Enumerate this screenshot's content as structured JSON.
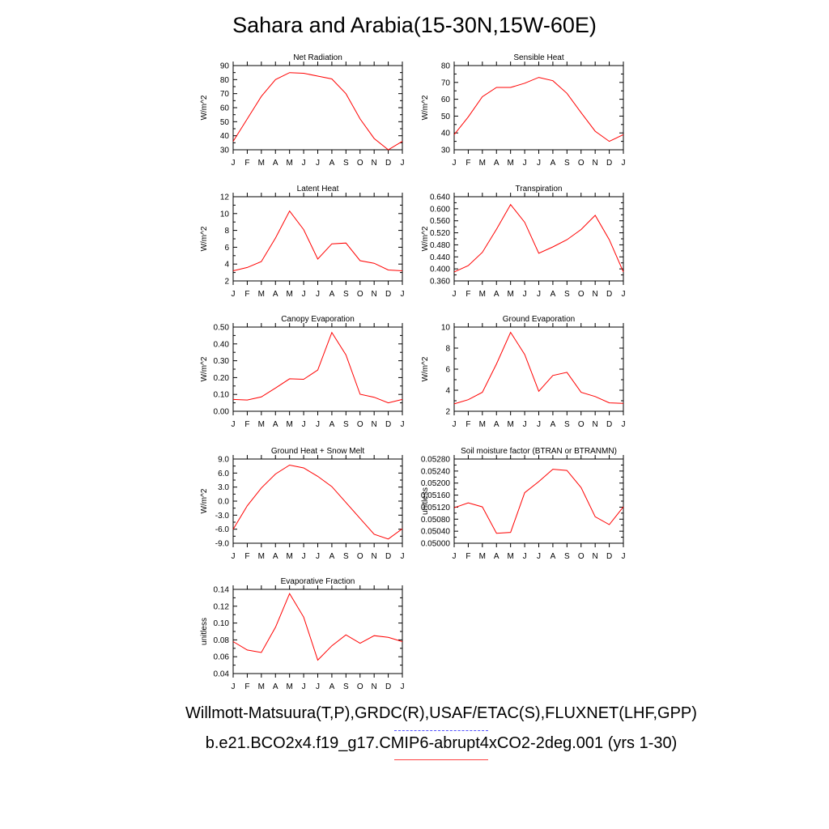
{
  "figure_title": "Sahara and Arabia(15-30N,15W-60E)",
  "month_labels": [
    "J",
    "F",
    "M",
    "A",
    "M",
    "J",
    "J",
    "A",
    "S",
    "O",
    "N",
    "D",
    "J"
  ],
  "colors": {
    "model_line": "#ff0000",
    "obs_line": "#5050ff",
    "axis": "#000000"
  },
  "legend": {
    "observations": "Willmott-Matsuura(T,P),GRDC(R),USAF/ETAC(S),FLUXNET(LHF,GPP)",
    "model": "b.e21.BCO2x4.f19_g17.CMIP6-abrupt4xCO2-2deg.001 (yrs 1-30)"
  },
  "chart_data": [
    {
      "type": "line",
      "title": "Net Radiation",
      "ylabel": "W/m^2",
      "ylim": [
        30,
        90
      ],
      "yticks": [
        "30",
        "40",
        "50",
        "60",
        "70",
        "80",
        "90"
      ],
      "x": [
        "J",
        "F",
        "M",
        "A",
        "M",
        "J",
        "J",
        "A",
        "S",
        "O",
        "N",
        "D",
        "J"
      ],
      "series": [
        {
          "values": [
            36,
            52,
            68,
            80,
            85,
            84.5,
            82.5,
            80.5,
            70,
            52,
            38,
            30,
            36
          ]
        }
      ]
    },
    {
      "type": "line",
      "title": "Sensible Heat",
      "ylabel": "W/m^2",
      "ylim": [
        30,
        80
      ],
      "yticks": [
        "30",
        "40",
        "50",
        "60",
        "70",
        "80"
      ],
      "x": [
        "J",
        "F",
        "M",
        "A",
        "M",
        "J",
        "J",
        "A",
        "S",
        "O",
        "N",
        "D",
        "J"
      ],
      "series": [
        {
          "values": [
            39,
            49.5,
            61.5,
            67,
            67,
            69.5,
            73,
            71,
            63.5,
            52,
            41,
            35,
            39
          ]
        }
      ]
    },
    {
      "type": "line",
      "title": "Latent Heat",
      "ylabel": "W/m^2",
      "ylim": [
        2,
        12
      ],
      "yticks": [
        "2",
        "4",
        "6",
        "8",
        "10",
        "12"
      ],
      "x": [
        "J",
        "F",
        "M",
        "A",
        "M",
        "J",
        "J",
        "A",
        "S",
        "O",
        "N",
        "D",
        "J"
      ],
      "series": [
        {
          "values": [
            3.2,
            3.6,
            4.3,
            7.1,
            10.3,
            8.1,
            4.6,
            6.4,
            6.5,
            4.4,
            4.1,
            3.3,
            3.2
          ]
        }
      ]
    },
    {
      "type": "line",
      "title": "Transpiration",
      "ylabel": "W/m^2",
      "ylim": [
        0.36,
        0.64
      ],
      "yticks": [
        "0.360",
        "0.400",
        "0.440",
        "0.480",
        "0.520",
        "0.560",
        "0.600",
        "0.640"
      ],
      "x": [
        "J",
        "F",
        "M",
        "A",
        "M",
        "J",
        "J",
        "A",
        "S",
        "O",
        "N",
        "D",
        "J"
      ],
      "series": [
        {
          "values": [
            0.39,
            0.411,
            0.455,
            0.532,
            0.614,
            0.555,
            0.452,
            0.473,
            0.497,
            0.531,
            0.578,
            0.497,
            0.39
          ]
        }
      ]
    },
    {
      "type": "line",
      "title": "Canopy Evaporation",
      "ylabel": "W/m^2",
      "ylim": [
        0,
        0.5
      ],
      "yticks": [
        "0.00",
        "0.10",
        "0.20",
        "0.30",
        "0.40",
        "0.50"
      ],
      "x": [
        "J",
        "F",
        "M",
        "A",
        "M",
        "J",
        "J",
        "A",
        "S",
        "O",
        "N",
        "D",
        "J"
      ],
      "series": [
        {
          "values": [
            0.07,
            0.067,
            0.085,
            0.138,
            0.193,
            0.19,
            0.245,
            0.468,
            0.335,
            0.101,
            0.083,
            0.05,
            0.07
          ]
        }
      ]
    },
    {
      "type": "line",
      "title": "Ground Evaporation",
      "ylabel": "W/m^2",
      "ylim": [
        2,
        10
      ],
      "yticks": [
        "2",
        "4",
        "6",
        "8",
        "10"
      ],
      "x": [
        "J",
        "F",
        "M",
        "A",
        "M",
        "J",
        "J",
        "A",
        "S",
        "O",
        "N",
        "D",
        "J"
      ],
      "series": [
        {
          "values": [
            2.7,
            3.1,
            3.8,
            6.5,
            9.5,
            7.4,
            3.9,
            5.4,
            5.7,
            3.8,
            3.4,
            2.8,
            2.75
          ]
        }
      ]
    },
    {
      "type": "line",
      "title": "Ground Heat + Snow Melt",
      "ylabel": "W/m^2",
      "ylim": [
        -9,
        9
      ],
      "yticks": [
        "-9.0",
        "-6.0",
        "-3.0",
        "0.0",
        "3.0",
        "6.0",
        "9.0"
      ],
      "x": [
        "J",
        "F",
        "M",
        "A",
        "M",
        "J",
        "J",
        "A",
        "S",
        "O",
        "N",
        "D",
        "J"
      ],
      "series": [
        {
          "values": [
            -6,
            -1,
            2.8,
            5.8,
            7.7,
            7.1,
            5.3,
            3.1,
            -0.3,
            -3.7,
            -7.1,
            -8.1,
            -5.9
          ]
        }
      ]
    },
    {
      "type": "line",
      "title": "Soil moisture factor (BTRAN or BTRANMN)",
      "ylabel": "unitless",
      "ylim": [
        0.05,
        0.0528
      ],
      "yticks": [
        "0.05000",
        "0.05040",
        "0.05080",
        "0.05120",
        "0.05160",
        "0.05200",
        "0.05240",
        "0.05280"
      ],
      "x": [
        "J",
        "F",
        "M",
        "A",
        "M",
        "J",
        "J",
        "A",
        "S",
        "O",
        "N",
        "D",
        "J"
      ],
      "series": [
        {
          "values": [
            0.05118,
            0.05134,
            0.05121,
            0.05033,
            0.05036,
            0.05168,
            0.05205,
            0.05246,
            0.05242,
            0.05185,
            0.05088,
            0.05062,
            0.05121
          ]
        }
      ]
    },
    {
      "type": "line",
      "title": "Evaporative Fraction",
      "ylabel": "unitless",
      "ylim": [
        0.04,
        0.14
      ],
      "yticks": [
        "0.04",
        "0.06",
        "0.08",
        "0.10",
        "0.12",
        "0.14"
      ],
      "x": [
        "J",
        "F",
        "M",
        "A",
        "M",
        "J",
        "J",
        "A",
        "S",
        "O",
        "N",
        "D",
        "J"
      ],
      "series": [
        {
          "values": [
            0.078,
            0.068,
            0.065,
            0.095,
            0.135,
            0.107,
            0.056,
            0.073,
            0.086,
            0.076,
            0.085,
            0.083,
            0.078
          ]
        }
      ]
    }
  ]
}
